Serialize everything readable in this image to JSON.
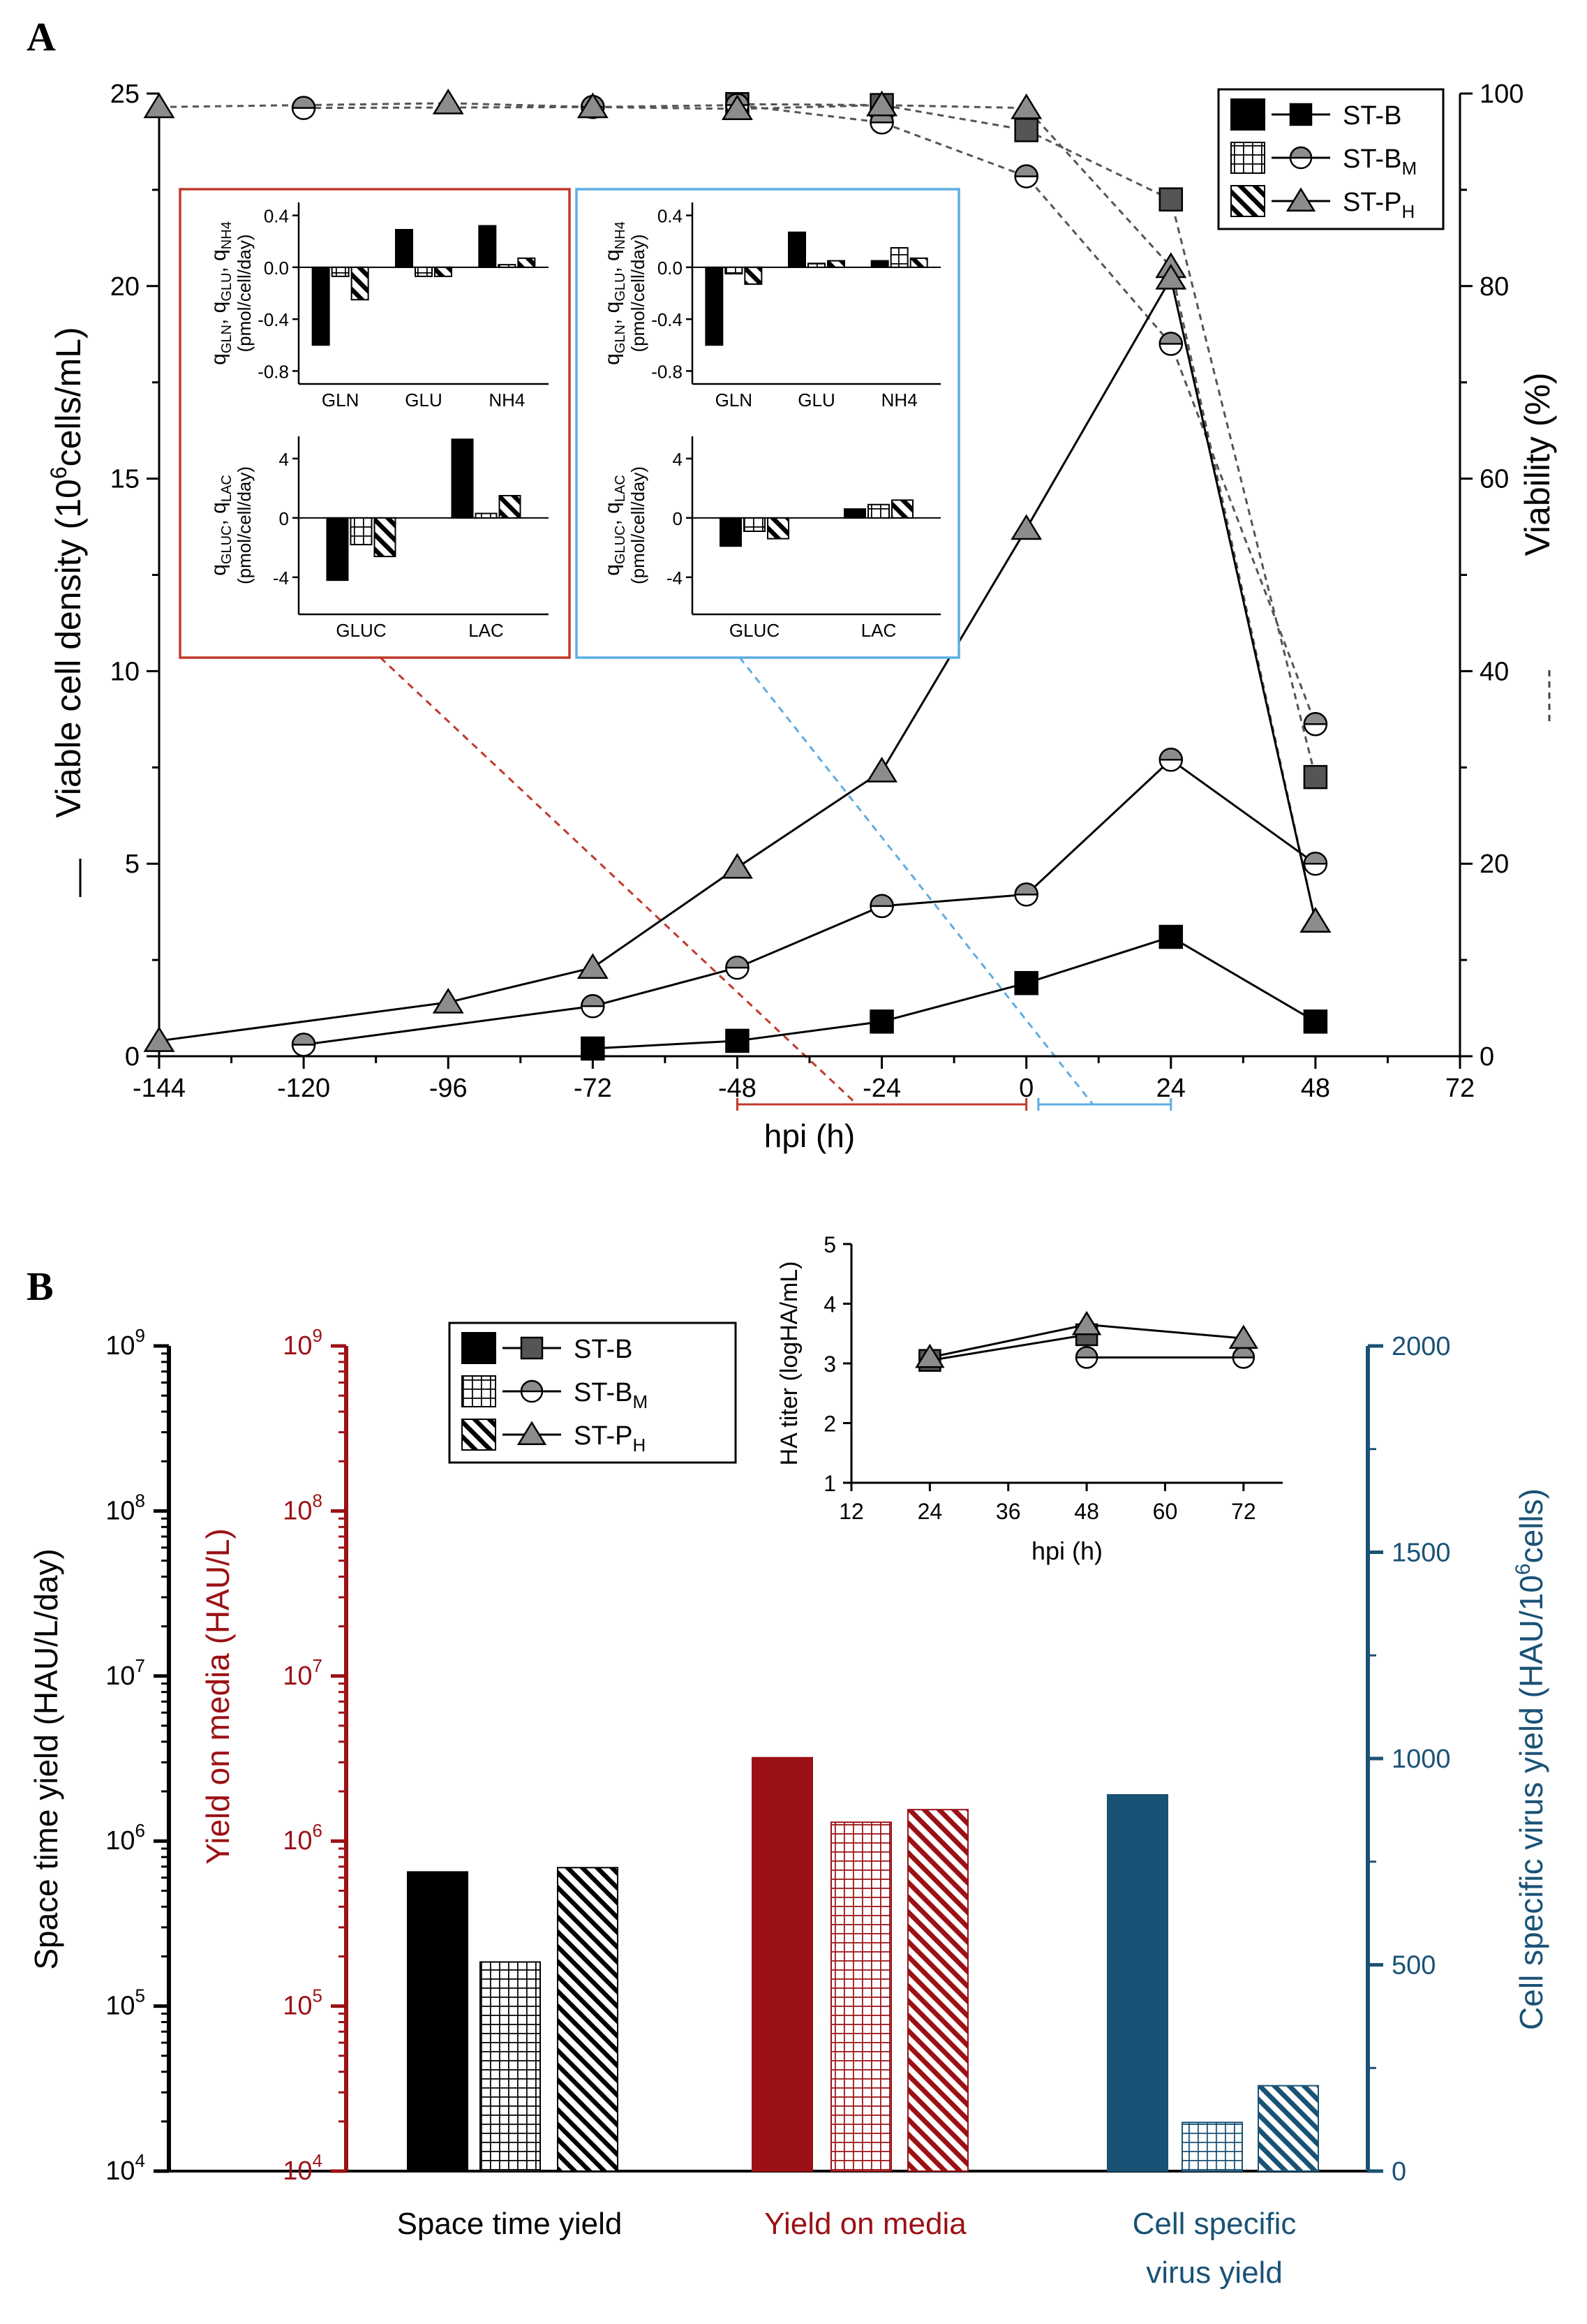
{
  "figure": {
    "panel_a_label": "A",
    "panel_b_label": "B"
  },
  "colors": {
    "black": "#000000",
    "red": "#9b1115",
    "blue": "#1a5276",
    "grey_marker": "#8c8c8c",
    "inset_red_border": "#c0392b",
    "inset_blue_border": "#5dade2"
  },
  "legend": {
    "items": [
      {
        "label": "ST-B",
        "sub": "",
        "marker": "square",
        "pattern": "solid"
      },
      {
        "label": "ST-B",
        "sub": "M",
        "marker": "half-circle",
        "pattern": "grid"
      },
      {
        "label": "ST-P",
        "sub": "H",
        "marker": "triangle",
        "pattern": "hatch"
      }
    ]
  },
  "chart_data": [
    {
      "id": "A-main",
      "type": "line",
      "x_ticks": [
        -144,
        -120,
        -96,
        -72,
        -48,
        -24,
        0,
        24,
        48,
        72
      ],
      "xlabel": "hpi (h)",
      "xlim": [
        -144,
        72
      ],
      "y_left": {
        "label_pre": "Viable cell density (10",
        "label_sup": "6",
        "label_post": "cells/mL)",
        "ticks": [
          0,
          5,
          10,
          15,
          20,
          25
        ],
        "lim": [
          0,
          25
        ]
      },
      "y_right": {
        "label": "Viability (%)",
        "ticks": [
          0,
          20,
          40,
          60,
          80,
          100
        ],
        "lim": [
          0,
          100
        ]
      },
      "vcd_series": [
        {
          "name": "ST-B",
          "marker": "square",
          "x": [
            -72,
            -48,
            -24,
            0,
            24,
            48
          ],
          "y": [
            0.2,
            0.4,
            0.9,
            1.9,
            3.1,
            0.9
          ]
        },
        {
          "name": "ST-BM",
          "marker": "half-circle",
          "x": [
            -120,
            -72,
            -48,
            -24,
            0,
            24,
            48
          ],
          "y": [
            0.3,
            1.3,
            2.3,
            3.9,
            4.2,
            7.7,
            5.0
          ]
        },
        {
          "name": "ST-PH",
          "marker": "triangle",
          "x": [
            -144,
            -96,
            -72,
            -48,
            -24,
            0,
            24,
            48
          ],
          "y": [
            0.4,
            1.4,
            2.3,
            4.9,
            7.4,
            13.7,
            20.2,
            3.5
          ]
        }
      ],
      "viability_series": [
        {
          "name": "ST-B",
          "marker": "square",
          "x": [
            -48,
            -24,
            0,
            24,
            48
          ],
          "y": [
            98.9,
            98.8,
            96.2,
            89.0,
            29.0
          ]
        },
        {
          "name": "ST-BM",
          "marker": "half-circle",
          "x": [
            -120,
            -72,
            -48,
            -24,
            0,
            24,
            48
          ],
          "y": [
            98.5,
            98.6,
            98.8,
            97.0,
            91.4,
            74.0,
            34.5
          ]
        },
        {
          "name": "ST-PH",
          "marker": "triangle",
          "x": [
            -144,
            -96,
            -72,
            -48,
            -24,
            0,
            24,
            48
          ],
          "y": [
            98.6,
            99.0,
            98.6,
            98.4,
            98.8,
            98.5,
            82.0,
            14.0
          ]
        }
      ],
      "ranges": [
        {
          "color": "red",
          "x": [
            -48,
            0
          ]
        },
        {
          "color": "blue",
          "x": [
            2,
            24
          ]
        }
      ]
    },
    {
      "id": "A-inset-red-top",
      "type": "bar",
      "categories": [
        "GLN",
        "GLU",
        "NH4"
      ],
      "series": [
        {
          "name": "ST-B",
          "values": [
            -0.6,
            0.29,
            0.32
          ]
        },
        {
          "name": "ST-BM",
          "values": [
            -0.07,
            -0.07,
            0.02
          ]
        },
        {
          "name": "ST-PH",
          "values": [
            -0.25,
            -0.07,
            0.07
          ]
        }
      ],
      "ylim": [
        -0.9,
        0.5
      ],
      "yticks": [
        "0.4",
        "0.0",
        "-0.4",
        "-0.8"
      ],
      "ylabel_line1": "q",
      "ylabel_line1_subs": [
        "GLN",
        "GLU",
        "NH4"
      ],
      "ylabel_line2": "(pmol/cell/day)"
    },
    {
      "id": "A-inset-red-bottom",
      "type": "bar",
      "categories": [
        "GLUC",
        "LAC"
      ],
      "series": [
        {
          "name": "ST-B",
          "values": [
            -4.2,
            5.3
          ]
        },
        {
          "name": "ST-BM",
          "values": [
            -1.8,
            0.3
          ]
        },
        {
          "name": "ST-PH",
          "values": [
            -2.6,
            1.5
          ]
        }
      ],
      "ylim": [
        -6.5,
        5.5
      ],
      "yticks": [
        "4",
        "0",
        "-4"
      ],
      "ylabel_line1": "q",
      "ylabel_line1_subs": [
        "GLUC",
        "LAC"
      ],
      "ylabel_line2": "(pmol/cell/day)"
    },
    {
      "id": "A-inset-blue-top",
      "type": "bar",
      "categories": [
        "GLN",
        "GLU",
        "NH4"
      ],
      "series": [
        {
          "name": "ST-B",
          "values": [
            -0.6,
            0.27,
            0.05
          ]
        },
        {
          "name": "ST-BM",
          "values": [
            -0.05,
            0.03,
            0.15
          ]
        },
        {
          "name": "ST-PH",
          "values": [
            -0.13,
            0.05,
            0.07
          ]
        }
      ],
      "ylim": [
        -0.9,
        0.5
      ],
      "yticks": [
        "0.4",
        "0.0",
        "-0.4",
        "-0.8"
      ],
      "ylabel_line1": "q",
      "ylabel_line1_subs": [
        "GLN",
        "GLU",
        "NH4"
      ],
      "ylabel_line2": "(pmol/cell/day)"
    },
    {
      "id": "A-inset-blue-bottom",
      "type": "bar",
      "categories": [
        "GLUC",
        "LAC"
      ],
      "series": [
        {
          "name": "ST-B",
          "values": [
            -1.9,
            0.6
          ]
        },
        {
          "name": "ST-BM",
          "values": [
            -0.9,
            0.9
          ]
        },
        {
          "name": "ST-PH",
          "values": [
            -1.4,
            1.2
          ]
        }
      ],
      "ylim": [
        -6.5,
        5.5
      ],
      "yticks": [
        "4",
        "0",
        "-4"
      ],
      "ylabel_line1": "q",
      "ylabel_line1_subs": [
        "GLUC",
        "LAC"
      ],
      "ylabel_line2": "(pmol/cell/day)"
    },
    {
      "id": "B-main",
      "type": "bar",
      "groups": [
        {
          "label_lines": [
            "Space time yield"
          ],
          "color": "black",
          "axis": "left_black",
          "values": [
            {
              "name": "ST-B",
              "value": 650000
            },
            {
              "name": "ST-BM",
              "value": 185000
            },
            {
              "name": "ST-PH",
              "value": 690000
            }
          ]
        },
        {
          "label_lines": [
            "Yield on media"
          ],
          "color": "red",
          "axis": "left_red",
          "values": [
            {
              "name": "ST-B",
              "value": 3200000
            },
            {
              "name": "ST-BM",
              "value": 1300000
            },
            {
              "name": "ST-PH",
              "value": 1550000
            }
          ]
        },
        {
          "label_lines": [
            "Cell specific",
            "virus yield"
          ],
          "color": "blue",
          "axis": "right_blue",
          "values": [
            {
              "name": "ST-B",
              "value": 912
            },
            {
              "name": "ST-BM",
              "value": 118
            },
            {
              "name": "ST-PH",
              "value": 207
            }
          ]
        }
      ],
      "axis_black": {
        "label": "Space time yield (HAU/L/day)",
        "exponents": [
          "9",
          "8",
          "7",
          "6",
          "5",
          "4"
        ],
        "base": "10",
        "log_range": [
          4,
          9
        ]
      },
      "axis_red": {
        "label": "Yield on media (HAU/L)",
        "exponents": [
          "9",
          "8",
          "7",
          "6",
          "5",
          "4"
        ],
        "base": "10",
        "log_range": [
          4,
          9
        ]
      },
      "axis_blue": {
        "label_pre": "Cell specific virus yield (HAU/10",
        "label_sup": "6",
        "label_post": "cells)",
        "ticks": [
          "2000",
          "1500",
          "1000",
          "500",
          "0"
        ],
        "lim": [
          0,
          2000
        ]
      }
    },
    {
      "id": "B-inset",
      "type": "line",
      "x_ticks": [
        "12",
        "24",
        "36",
        "48",
        "60",
        "72"
      ],
      "y_ticks": [
        "1",
        "2",
        "3",
        "4",
        "5"
      ],
      "xlabel": "hpi (h)",
      "ylabel": "HA titer (logHA/mL)",
      "xlim": [
        12,
        78
      ],
      "ylim": [
        1,
        5
      ],
      "series": [
        {
          "name": "ST-B",
          "marker": "square",
          "x": [
            24,
            48
          ],
          "y": [
            3.05,
            3.48
          ]
        },
        {
          "name": "ST-BM",
          "marker": "half-circle",
          "x": [
            48,
            72
          ],
          "y": [
            3.1,
            3.1
          ]
        },
        {
          "name": "ST-PH",
          "marker": "triangle",
          "x": [
            24,
            48,
            72
          ],
          "y": [
            3.1,
            3.65,
            3.42
          ]
        }
      ]
    }
  ]
}
